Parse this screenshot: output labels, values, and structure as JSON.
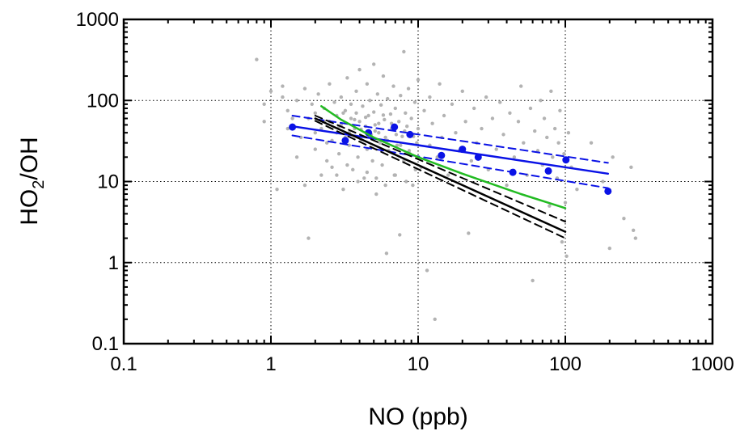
{
  "chart_data": {
    "type": "scatter",
    "xlabel": "NO (ppb)",
    "ylabel_main": "HO",
    "ylabel_sub": "2",
    "ylabel_tail": "/OH",
    "xscale": "log",
    "yscale": "log",
    "xlim": [
      0.1,
      1000
    ],
    "ylim": [
      0.1,
      1000
    ],
    "x_tick_values": [
      0.1,
      1,
      10,
      100,
      1000
    ],
    "x_tick_labels": [
      "0.1",
      "1",
      "10",
      "100",
      "1000"
    ],
    "y_tick_values": [
      0.1,
      1,
      10,
      100,
      1000
    ],
    "y_tick_labels": [
      "0.1",
      "1",
      "10",
      "100",
      "1000"
    ],
    "grid": true,
    "colors": {
      "observations": "#b3b3b3",
      "binned": "#0a12e6",
      "model_black": "#000000",
      "model_green": "#22bb22"
    },
    "series": [
      {
        "kind": "points",
        "color": "#b3b3b3",
        "radius": 2.2,
        "points": [
          [
            0.8,
            320
          ],
          [
            0.9,
            55
          ],
          [
            0.9,
            90
          ],
          [
            1.0,
            130
          ],
          [
            1.1,
            8
          ],
          [
            1.2,
            150
          ],
          [
            1.2,
            110
          ],
          [
            1.3,
            75
          ],
          [
            1.3,
            45
          ],
          [
            1.4,
            60
          ],
          [
            1.5,
            20
          ],
          [
            1.5,
            100
          ],
          [
            1.6,
            35
          ],
          [
            1.7,
            140
          ],
          [
            1.7,
            9
          ],
          [
            1.8,
            2.0
          ],
          [
            1.8,
            60
          ],
          [
            1.9,
            90
          ],
          [
            2.0,
            25
          ],
          [
            2.0,
            70
          ],
          [
            2.1,
            120
          ],
          [
            2.2,
            45
          ],
          [
            2.2,
            12
          ],
          [
            2.3,
            80
          ],
          [
            2.4,
            30
          ],
          [
            2.5,
            55
          ],
          [
            2.5,
            160
          ],
          [
            2.6,
            15
          ],
          [
            2.7,
            95
          ],
          [
            2.8,
            40
          ],
          [
            2.8,
            65
          ],
          [
            2.9,
            22
          ],
          [
            3.0,
            110
          ],
          [
            3.0,
            50
          ],
          [
            3.1,
            8
          ],
          [
            3.2,
            75
          ],
          [
            3.2,
            35
          ],
          [
            3.3,
            190
          ],
          [
            3.4,
            28
          ],
          [
            3.5,
            60
          ],
          [
            3.5,
            90
          ],
          [
            3.6,
            14
          ],
          [
            3.7,
            45
          ],
          [
            3.8,
            130
          ],
          [
            3.8,
            70
          ],
          [
            3.9,
            20
          ],
          [
            4.0,
            55
          ],
          [
            4.0,
            240
          ],
          [
            4.1,
            33
          ],
          [
            4.2,
            85
          ],
          [
            4.3,
            11
          ],
          [
            4.4,
            48
          ],
          [
            4.5,
            160
          ],
          [
            4.5,
            25
          ],
          [
            4.6,
            65
          ],
          [
            4.7,
            100
          ],
          [
            4.8,
            38
          ],
          [
            4.9,
            18
          ],
          [
            5.0,
            280
          ],
          [
            5.0,
            72
          ],
          [
            5.1,
            42
          ],
          [
            5.2,
            7
          ],
          [
            5.3,
            120
          ],
          [
            5.4,
            52
          ],
          [
            5.5,
            30
          ],
          [
            5.6,
            88
          ],
          [
            5.7,
            16
          ],
          [
            5.8,
            200
          ],
          [
            5.9,
            58
          ],
          [
            6.0,
            35
          ],
          [
            6.1,
            1.3
          ],
          [
            6.2,
            105
          ],
          [
            6.3,
            24
          ],
          [
            6.5,
            68
          ],
          [
            6.6,
            45
          ],
          [
            6.8,
            150
          ],
          [
            6.9,
            12
          ],
          [
            7.0,
            80
          ],
          [
            7.2,
            28
          ],
          [
            7.4,
            55
          ],
          [
            7.5,
            2.2
          ],
          [
            7.6,
            115
          ],
          [
            7.8,
            36
          ],
          [
            8.0,
            400
          ],
          [
            8.0,
            18
          ],
          [
            8.2,
            70
          ],
          [
            8.4,
            48
          ],
          [
            8.6,
            140
          ],
          [
            8.8,
            22
          ],
          [
            9.0,
            60
          ],
          [
            9.2,
            9
          ],
          [
            9.5,
            95
          ],
          [
            9.8,
            30
          ],
          [
            10,
            180
          ],
          [
            10,
            45
          ],
          [
            10.5,
            15
          ],
          [
            11,
            75
          ],
          [
            11.5,
            0.8
          ],
          [
            12,
            110
          ],
          [
            12,
            28
          ],
          [
            12.5,
            52
          ],
          [
            13,
            0.2
          ],
          [
            13.5,
            20
          ],
          [
            14,
            160
          ],
          [
            14.5,
            35
          ],
          [
            15,
            65
          ],
          [
            16,
            12
          ],
          [
            17,
            90
          ],
          [
            18,
            40
          ],
          [
            19,
            24
          ],
          [
            20,
            130
          ],
          [
            21,
            55
          ],
          [
            22,
            2.3
          ],
          [
            23,
            18
          ],
          [
            24,
            80
          ],
          [
            25,
            30
          ],
          [
            27,
            45
          ],
          [
            29,
            110
          ],
          [
            30,
            14
          ],
          [
            32,
            60
          ],
          [
            34,
            25
          ],
          [
            36,
            95
          ],
          [
            38,
            38
          ],
          [
            40,
            9
          ],
          [
            42,
            70
          ],
          [
            45,
            20
          ],
          [
            48,
            55
          ],
          [
            50,
            150
          ],
          [
            52,
            30
          ],
          [
            55,
            12
          ],
          [
            58,
            80
          ],
          [
            60,
            0.6
          ],
          [
            62,
            42
          ],
          [
            65,
            24
          ],
          [
            68,
            100
          ],
          [
            70,
            16
          ],
          [
            72,
            60
          ],
          [
            75,
            35
          ],
          [
            78,
            5
          ],
          [
            80,
            130
          ],
          [
            82,
            20
          ],
          [
            85,
            45
          ],
          [
            88,
            11
          ],
          [
            90,
            30
          ],
          [
            92,
            75
          ],
          [
            95,
            1.8
          ],
          [
            98,
            22
          ],
          [
            100,
            5.5
          ],
          [
            102,
            1.2
          ],
          [
            105,
            40
          ],
          [
            110,
            15
          ],
          [
            120,
            8
          ],
          [
            150,
            30
          ],
          [
            180,
            10
          ],
          [
            200,
            1.5
          ],
          [
            210,
            20
          ],
          [
            250,
            3.5
          ],
          [
            280,
            15
          ],
          [
            290,
            2.5
          ],
          [
            300,
            2.0
          ],
          [
            2.0,
            40
          ],
          [
            2.3,
            55
          ],
          [
            2.6,
            32
          ],
          [
            2.9,
            48
          ],
          [
            3.1,
            70
          ],
          [
            3.4,
            40
          ],
          [
            3.7,
            58
          ],
          [
            4.1,
            44
          ],
          [
            4.4,
            62
          ],
          [
            4.7,
            36
          ],
          [
            5.1,
            50
          ],
          [
            5.4,
            40
          ],
          [
            5.8,
            66
          ],
          [
            6.2,
            32
          ],
          [
            6.6,
            52
          ],
          [
            7.1,
            38
          ],
          [
            7.6,
            28
          ],
          [
            8.1,
            42
          ],
          [
            8.7,
            24
          ],
          [
            9.3,
            36
          ],
          [
            2.4,
            18
          ],
          [
            2.8,
            12
          ],
          [
            3.3,
            16
          ],
          [
            3.9,
            10
          ],
          [
            4.5,
            13
          ],
          [
            5.2,
            11
          ],
          [
            6.0,
            9
          ],
          [
            7.0,
            12
          ],
          [
            8.3,
            10
          ],
          [
            9.6,
            14
          ]
        ]
      },
      {
        "kind": "points",
        "color": "#0a12e6",
        "radius": 4.5,
        "points": [
          [
            1.4,
            47
          ],
          [
            3.2,
            32
          ],
          [
            4.6,
            40
          ],
          [
            6.9,
            47
          ],
          [
            8.8,
            38
          ],
          [
            14.4,
            21
          ],
          [
            20.0,
            25
          ],
          [
            25.6,
            20
          ],
          [
            44.0,
            13
          ],
          [
            76.7,
            13.5
          ],
          [
            101,
            18.5
          ],
          [
            195,
            7.6
          ]
        ]
      },
      {
        "kind": "line",
        "color": "#0a12e6",
        "width": 2.5,
        "dash": "none",
        "points": [
          [
            1.4,
            48
          ],
          [
            195,
            12.5
          ]
        ]
      },
      {
        "kind": "line",
        "color": "#0a12e6",
        "width": 2,
        "dash": "9,6",
        "points": [
          [
            1.4,
            65
          ],
          [
            195,
            17
          ]
        ]
      },
      {
        "kind": "line",
        "color": "#0a12e6",
        "width": 2,
        "dash": "9,6",
        "points": [
          [
            1.4,
            37
          ],
          [
            195,
            8.3
          ]
        ]
      },
      {
        "kind": "line",
        "color": "#000000",
        "width": 2.5,
        "dash": "none",
        "points": [
          [
            2.0,
            60
          ],
          [
            100,
            2.4
          ]
        ]
      },
      {
        "kind": "line",
        "color": "#000000",
        "width": 2,
        "dash": "9,6",
        "points": [
          [
            2.0,
            65
          ],
          [
            100,
            3.2
          ]
        ]
      },
      {
        "kind": "line",
        "color": "#000000",
        "width": 2,
        "dash": "9,6",
        "points": [
          [
            2.0,
            56
          ],
          [
            100,
            2.0
          ]
        ]
      },
      {
        "kind": "line",
        "color": "#22bb22",
        "width": 2.5,
        "dash": "none",
        "points": [
          [
            2.2,
            85
          ],
          [
            3,
            58
          ],
          [
            5,
            35
          ],
          [
            10,
            20
          ],
          [
            20,
            12.5
          ],
          [
            50,
            7
          ],
          [
            100,
            4.7
          ]
        ]
      }
    ]
  }
}
